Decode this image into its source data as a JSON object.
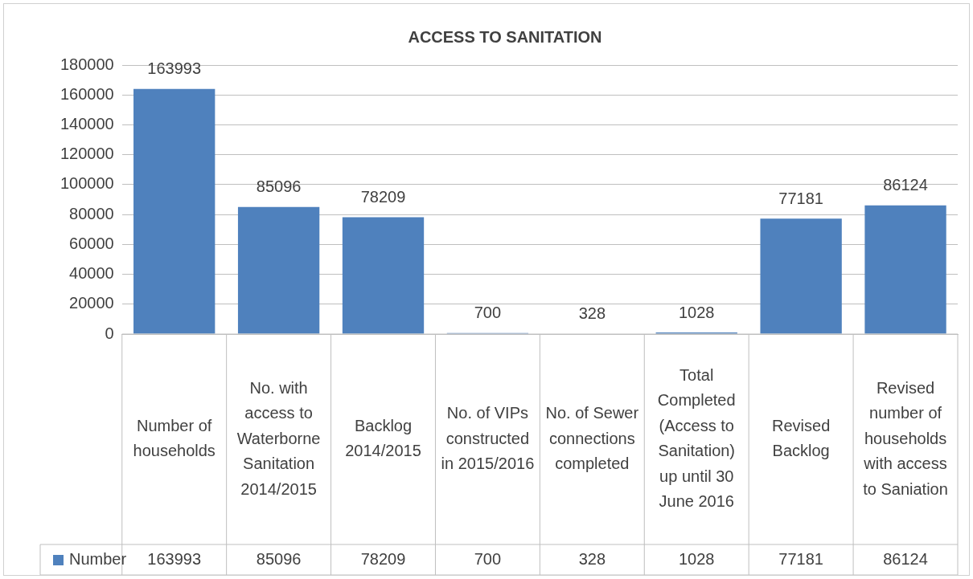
{
  "chart_data": {
    "type": "bar",
    "title": "ACCESS TO SANITATION",
    "categories": [
      "Number of households",
      "No. with access to Waterborne Sanitation 2014/2015",
      "Backlog 2014/2015",
      "No. of VIPs constructed in 2015/2016",
      "No. of Sewer connections completed",
      "Total Completed (Access to Sanitation) up until 30 June 2016",
      "Revised Backlog",
      "Revised number of households with access to Saniation"
    ],
    "series": [
      {
        "name": "Number",
        "color": "#4f81bd",
        "values": [
          163993,
          85096,
          78209,
          700,
          328,
          1028,
          77181,
          86124
        ]
      }
    ],
    "annotations": [
      {
        "text": "163993",
        "x": "Number of households",
        "y": 163993
      },
      {
        "text": "85096",
        "x": "No. with access to Waterborne Sanitation 2014/2015",
        "y": 85096
      },
      {
        "text": "78209",
        "x": "Backlog 2014/2015",
        "y": 78209
      },
      {
        "text": "700",
        "x": "No. of VIPs constructed in 2015/2016",
        "y": 700
      },
      {
        "text": "328",
        "x": "No. of Sewer connections completed",
        "y": 328
      },
      {
        "text": "1028",
        "x": "Total Completed (Access to Sanitation) up until 30 June 2016",
        "y": 1028
      },
      {
        "text": "77181",
        "x": "Revised Backlog",
        "y": 77181
      },
      {
        "text": "86124",
        "x": "Revised number of households with access to Saniation",
        "y": 86124
      }
    ],
    "ylim": [
      0,
      180000
    ],
    "yticks": [
      0,
      20000,
      40000,
      60000,
      80000,
      100000,
      120000,
      140000,
      160000,
      180000
    ],
    "grid": "y",
    "legend": "bottom",
    "data_labels": true
  }
}
